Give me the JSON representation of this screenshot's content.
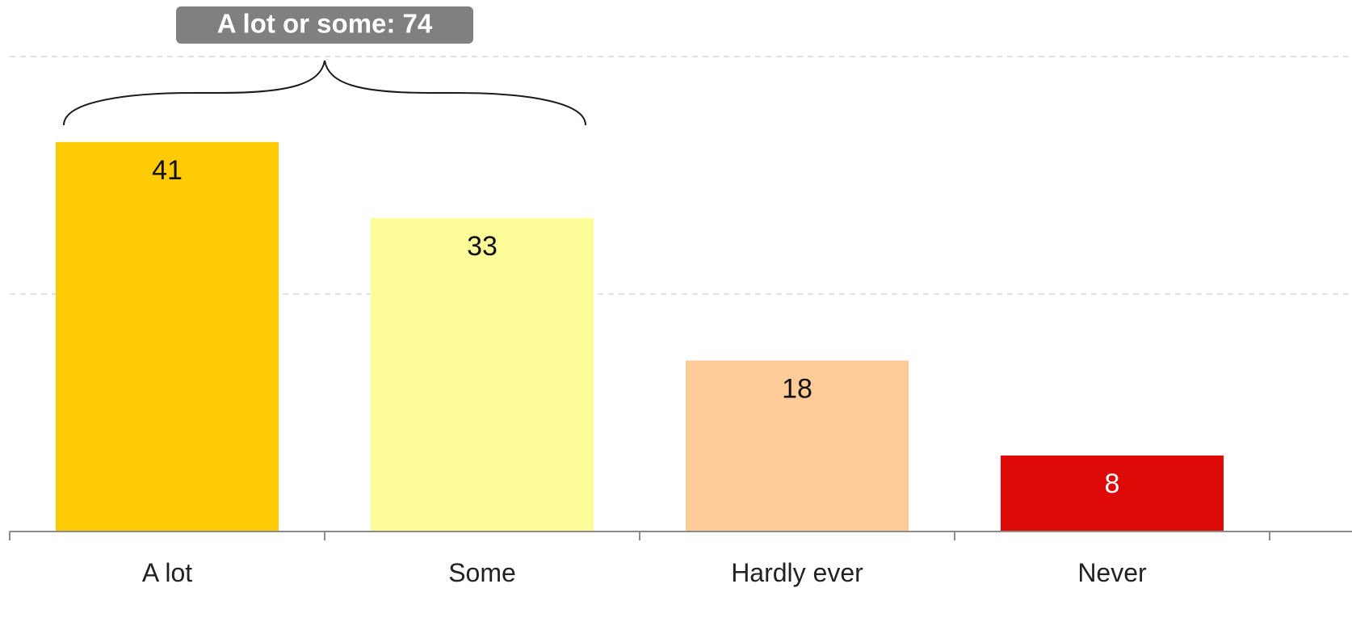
{
  "chart_data": {
    "type": "bar",
    "categories": [
      "A lot",
      "Some",
      "Hardly ever",
      "Never"
    ],
    "values": [
      41,
      33,
      18,
      8
    ],
    "colors": [
      "#FFCB05",
      "#FCFC99",
      "#FFCC99",
      "#DD0A07"
    ],
    "label_colors": [
      "#111111",
      "#111111",
      "#111111",
      "#ffffff"
    ],
    "ylim": [
      0,
      50
    ],
    "grid": true,
    "annotation": {
      "text": "A lot or some: 74",
      "spans": [
        "A lot",
        "Some"
      ],
      "box_color": "#808080"
    }
  }
}
